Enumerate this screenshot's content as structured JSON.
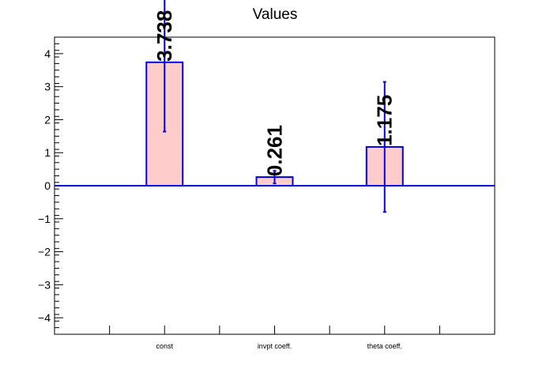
{
  "chart_data": {
    "type": "bar",
    "title": "Values",
    "categories": [
      "const",
      "invpt coeff.",
      "theta coeff."
    ],
    "values": [
      3.738,
      0.261,
      1.175
    ],
    "errors": [
      2.1,
      0.19,
      1.97
    ],
    "value_labels": [
      "3.738",
      "0.261",
      "1.175"
    ],
    "ylim": [
      -4.5,
      4.5
    ],
    "yticks": [
      -4,
      -3,
      -2,
      -1,
      0,
      1,
      2,
      3,
      4
    ],
    "ytick_labels": [
      "−4",
      "−3",
      "−2",
      "−1",
      "0",
      "1",
      "2",
      "3",
      "4"
    ],
    "xlabel": "",
    "ylabel": "",
    "grid": false,
    "bar_fill": "#ffcccc",
    "bar_edge": "#0000dd",
    "error_color": "#0000dd",
    "zero_line_color": "#0000dd"
  }
}
